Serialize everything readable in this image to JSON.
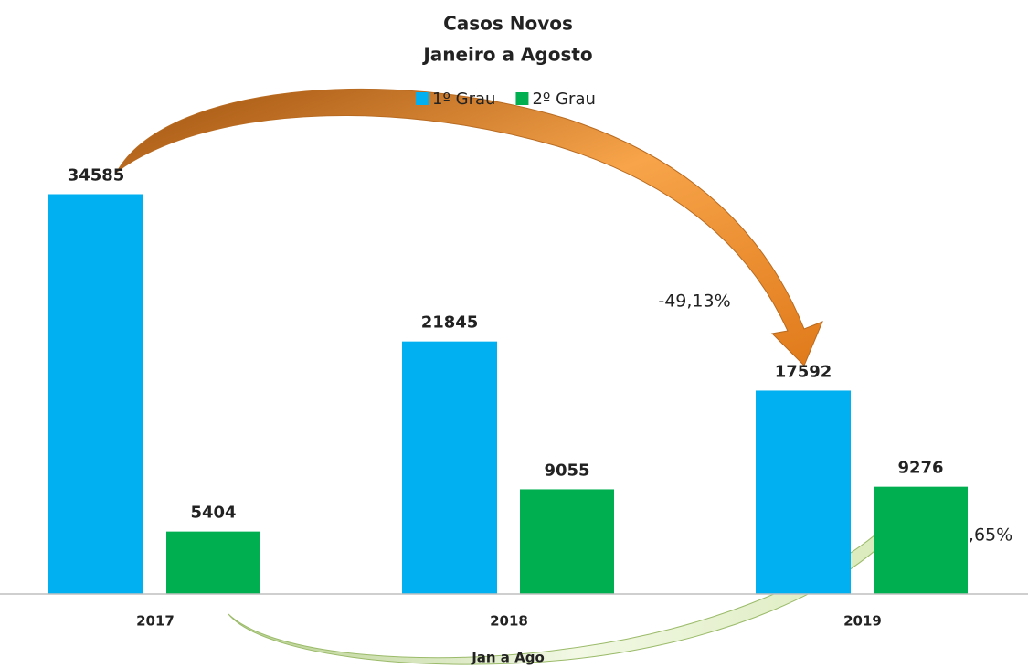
{
  "chart_data": {
    "type": "bar",
    "title": [
      "Casos Novos",
      "Janeiro a Agosto"
    ],
    "x_label": "Jan a Ago",
    "categories": [
      "2017",
      "2018",
      "2019"
    ],
    "series": [
      {
        "name": "1º Grau",
        "color": "#00b0f0",
        "values": [
          34585,
          21845,
          17592
        ]
      },
      {
        "name": "2º Grau",
        "color": "#00b050",
        "values": [
          5404,
          9055,
          9276
        ]
      }
    ],
    "ylim": [
      0,
      40000
    ],
    "legend": "top",
    "annotations": [
      "-49,13%",
      "+71,65%"
    ]
  }
}
